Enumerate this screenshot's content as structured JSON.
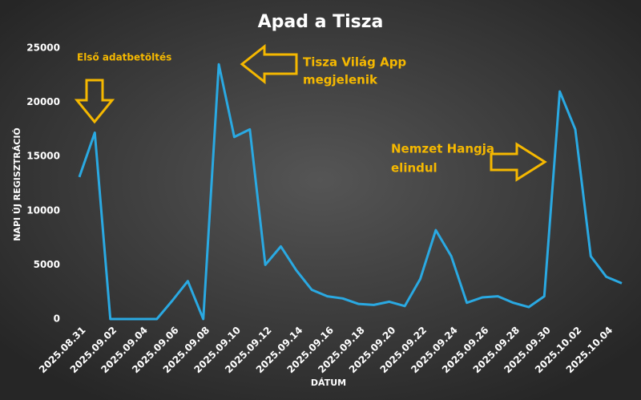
{
  "chart_data": {
    "type": "line",
    "title": "Apad a Tisza",
    "xlabel": "DÁTUM",
    "ylabel": "NAPI ÚJ REGISZTRÁCIÓ",
    "categories": [
      "2025.08.31",
      null,
      "2025.09.02",
      null,
      "2025.09.04",
      null,
      "2025.09.06",
      null,
      "2025.09.08",
      null,
      "2025.09.10",
      null,
      "2025.09.12",
      null,
      "2025.09.14",
      null,
      "2025.09.16",
      null,
      "2025.09.18",
      null,
      "2025.09.20",
      null,
      "2025.09.22",
      null,
      "2025.09.24",
      null,
      "2025.09.26",
      null,
      "2025.09.28",
      null,
      "2025.09.30",
      null,
      "2025.10.02",
      null,
      "2025.10.04",
      null
    ],
    "series": [
      {
        "color": "#2aa9e2",
        "values": [
          13100,
          17200,
          0,
          0,
          0,
          0,
          1700,
          3500,
          0,
          23500,
          16800,
          17500,
          5000,
          6700,
          4500,
          2700,
          2100,
          1900,
          1400,
          1300,
          1600,
          1200,
          3700,
          8200,
          5800,
          1500,
          2000,
          2100,
          1500,
          1100,
          2100,
          21000,
          17500,
          5800,
          3900,
          3300
        ]
      }
    ],
    "ylim": [
      0,
      25000
    ],
    "yticks": [
      0,
      5000,
      10000,
      15000,
      20000,
      25000
    ],
    "grid": false,
    "annotations": [
      {
        "text": [
          "Első adatbetöltés"
        ]
      },
      {
        "text": [
          "Tisza Világ App",
          "megjelenik"
        ]
      },
      {
        "text": [
          "Nemzet Hangja",
          "elindul"
        ]
      }
    ]
  }
}
